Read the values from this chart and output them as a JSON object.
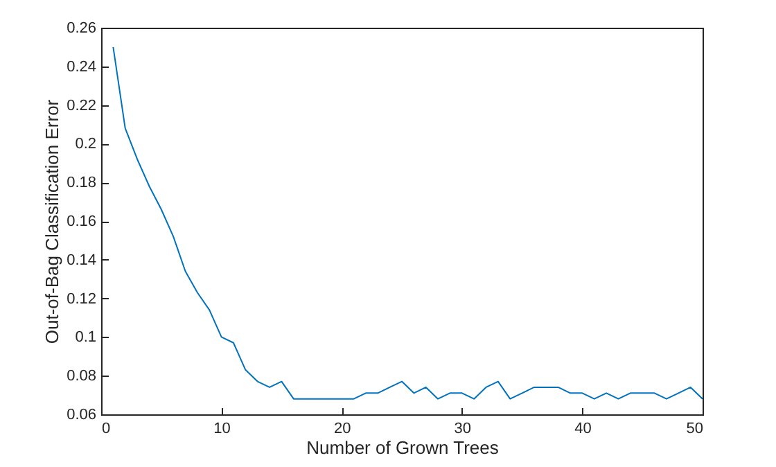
{
  "chart_data": {
    "type": "line",
    "xlabel": "Number of Grown Trees",
    "ylabel": "Out-of-Bag Classification Error",
    "x": [
      1,
      2,
      3,
      4,
      5,
      6,
      7,
      8,
      9,
      10,
      11,
      12,
      13,
      14,
      15,
      16,
      17,
      18,
      19,
      20,
      21,
      22,
      23,
      24,
      25,
      26,
      27,
      28,
      29,
      30,
      31,
      32,
      33,
      34,
      35,
      36,
      37,
      38,
      39,
      40,
      41,
      42,
      43,
      44,
      45,
      46,
      47,
      48,
      49,
      50
    ],
    "series": [
      {
        "color": "#0072bd",
        "values": [
          0.25,
          0.208,
          0.192,
          0.178,
          0.166,
          0.152,
          0.134,
          0.123,
          0.114,
          0.1,
          0.097,
          0.083,
          0.077,
          0.074,
          0.077,
          0.068,
          0.068,
          0.068,
          0.068,
          0.068,
          0.068,
          0.071,
          0.071,
          0.074,
          0.077,
          0.071,
          0.074,
          0.068,
          0.071,
          0.071,
          0.068,
          0.074,
          0.077,
          0.068,
          0.071,
          0.074,
          0.074,
          0.074,
          0.071,
          0.071,
          0.068,
          0.071,
          0.068,
          0.071,
          0.071,
          0.071,
          0.068,
          0.071,
          0.074,
          0.068
        ]
      }
    ],
    "xlim": [
      0,
      50
    ],
    "xticks": [
      0,
      10,
      20,
      30,
      40,
      50
    ],
    "ylim": [
      0.06,
      0.26
    ],
    "yticks": [
      0.06,
      0.08,
      0.1,
      0.12,
      0.14,
      0.16,
      0.18,
      0.2,
      0.22,
      0.24,
      0.26
    ],
    "grid": false,
    "marker": "none",
    "line_style": "solid"
  }
}
